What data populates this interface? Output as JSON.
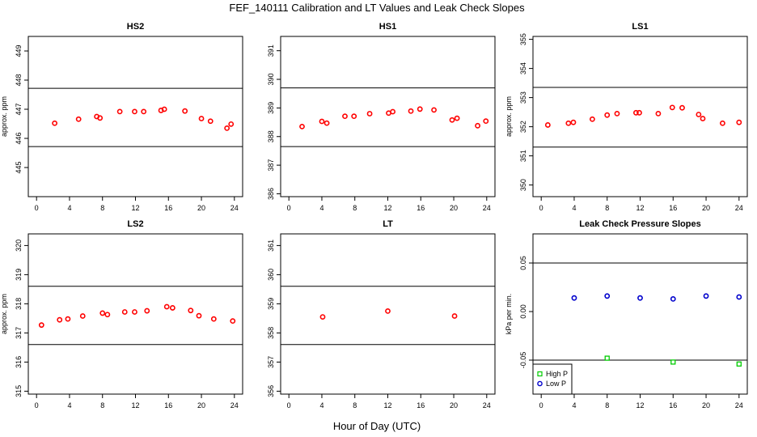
{
  "figure": {
    "title": "FEF_140111  Calibration and LT Values and Leak Check Slopes",
    "xlabel": "Hour of Day (UTC)"
  },
  "chart_data": [
    {
      "type": "scatter",
      "title": "HS2",
      "ylabel": "approx. ppm",
      "xlim": [
        -1,
        25
      ],
      "ylim": [
        444,
        449.5
      ],
      "xticks": [
        0,
        4,
        8,
        12,
        16,
        20,
        24
      ],
      "yticks": [
        445,
        446,
        447,
        448,
        449
      ],
      "hlines": [
        447.72,
        445.72
      ],
      "series": [
        {
          "name": "HS2",
          "color": "#ff0000",
          "x": [
            2.2,
            5.1,
            7.3,
            7.7,
            10.1,
            11.9,
            13.0,
            15.1,
            15.5,
            18.0,
            20.0,
            21.1,
            23.1,
            23.6
          ],
          "y": [
            446.52,
            446.66,
            446.75,
            446.7,
            446.92,
            446.92,
            446.92,
            446.96,
            447.0,
            446.94,
            446.68,
            446.59,
            446.35,
            446.49
          ]
        }
      ]
    },
    {
      "type": "scatter",
      "title": "HS1",
      "ylabel": "",
      "xlim": [
        -1,
        25
      ],
      "ylim": [
        385.9,
        391.5
      ],
      "xticks": [
        0,
        4,
        8,
        12,
        16,
        20,
        24
      ],
      "yticks": [
        386,
        387,
        388,
        389,
        390,
        391
      ],
      "hlines": [
        389.7,
        387.65
      ],
      "series": [
        {
          "name": "HS1",
          "color": "#ff0000",
          "x": [
            1.6,
            4.0,
            4.6,
            6.8,
            7.9,
            9.8,
            12.1,
            12.6,
            14.8,
            15.9,
            17.6,
            19.8,
            20.4,
            22.9,
            23.9
          ],
          "y": [
            388.35,
            388.53,
            388.47,
            388.71,
            388.71,
            388.8,
            388.82,
            388.87,
            388.89,
            388.96,
            388.93,
            388.58,
            388.64,
            388.38,
            388.54
          ]
        }
      ]
    },
    {
      "type": "scatter",
      "title": "LS1",
      "ylabel": "approx. ppm",
      "xlim": [
        -1,
        25
      ],
      "ylim": [
        349.6,
        355.1
      ],
      "xticks": [
        0,
        4,
        8,
        12,
        16,
        20,
        24
      ],
      "yticks": [
        350,
        351,
        352,
        353,
        354,
        355
      ],
      "hlines": [
        353.35,
        351.3
      ],
      "series": [
        {
          "name": "LS1",
          "color": "#ff0000",
          "x": [
            0.8,
            3.3,
            3.9,
            6.2,
            8.0,
            9.2,
            11.5,
            11.9,
            14.2,
            15.9,
            17.1,
            19.1,
            19.6,
            22.0,
            24.0
          ],
          "y": [
            352.06,
            352.12,
            352.15,
            352.26,
            352.4,
            352.45,
            352.48,
            352.48,
            352.45,
            352.66,
            352.65,
            352.42,
            352.28,
            352.12,
            352.15
          ]
        }
      ]
    },
    {
      "type": "scatter",
      "title": "LS2",
      "ylabel": "approx. ppm",
      "xlim": [
        -1,
        25
      ],
      "ylim": [
        314.9,
        320.4
      ],
      "xticks": [
        0,
        4,
        8,
        12,
        16,
        20,
        24
      ],
      "yticks": [
        315,
        316,
        317,
        318,
        319,
        320
      ],
      "hlines": [
        318.6,
        316.6
      ],
      "series": [
        {
          "name": "LS2",
          "color": "#ff0000",
          "x": [
            0.6,
            2.8,
            3.8,
            5.6,
            8.0,
            8.6,
            10.7,
            11.9,
            13.4,
            15.8,
            16.5,
            18.7,
            19.7,
            21.5,
            23.8
          ],
          "y": [
            317.27,
            317.45,
            317.48,
            317.58,
            317.68,
            317.63,
            317.72,
            317.72,
            317.76,
            317.9,
            317.86,
            317.77,
            317.59,
            317.48,
            317.41
          ]
        }
      ]
    },
    {
      "type": "scatter",
      "title": "LT",
      "ylabel": "",
      "xlim": [
        -1,
        25
      ],
      "ylim": [
        355.9,
        361.4
      ],
      "xticks": [
        0,
        4,
        8,
        12,
        16,
        20,
        24
      ],
      "yticks": [
        356,
        357,
        358,
        359,
        360,
        361
      ],
      "hlines": [
        359.6,
        357.6
      ],
      "series": [
        {
          "name": "LT",
          "color": "#ff0000",
          "x": [
            4.1,
            12.0,
            20.1
          ],
          "y": [
            358.55,
            358.75,
            358.58
          ]
        }
      ]
    },
    {
      "type": "scatter",
      "title": "Leak Check Pressure Slopes",
      "ylabel": "kPa per min.",
      "xlim": [
        -1,
        25
      ],
      "ylim": [
        -0.085,
        0.08
      ],
      "xticks": [
        0,
        4,
        8,
        12,
        16,
        20,
        24
      ],
      "yticks": [
        -0.05,
        0.0,
        0.05
      ],
      "ytick_labels": [
        "-0.05",
        "0.00",
        "0.05"
      ],
      "hlines": [
        0.05,
        -0.05
      ],
      "legend": {
        "position": "bottom-left",
        "entries": [
          "High P",
          "Low P"
        ]
      },
      "series": [
        {
          "name": "High P",
          "color": "#00cc00",
          "marker": "square",
          "x": [
            8,
            16,
            24
          ],
          "y": [
            -0.048,
            -0.052,
            -0.054
          ]
        },
        {
          "name": "Low P",
          "color": "#0000cc",
          "marker": "circle",
          "x": [
            4,
            8,
            12,
            16,
            20,
            24
          ],
          "y": [
            0.014,
            0.016,
            0.014,
            0.013,
            0.016,
            0.015
          ]
        }
      ]
    }
  ]
}
